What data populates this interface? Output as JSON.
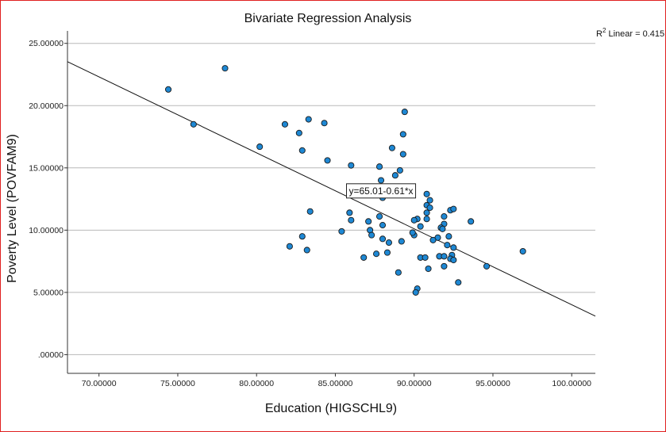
{
  "chart_data": {
    "type": "scatter",
    "title": "Bivariate Regression Analysis",
    "xlabel": "Education (HIGSCHL9)",
    "ylabel": "Poverty Level (POVFAM9)",
    "xlim": [
      68.0,
      101.5
    ],
    "ylim": [
      -1.5,
      26.0
    ],
    "xticks": [
      70,
      75,
      80,
      85,
      90,
      95,
      100
    ],
    "yticks": [
      0,
      5,
      10,
      15,
      20,
      25
    ],
    "xtick_labels": [
      "70.00000",
      "75.00000",
      "80.00000",
      "85.00000",
      "90.00000",
      "95.00000",
      "100.00000"
    ],
    "ytick_labels": [
      ".00000",
      "5.00000",
      "10.00000",
      "15.00000",
      "20.00000",
      "25.00000"
    ],
    "grid": "horizontal",
    "r2_prefix": "R",
    "r2_sup": "2",
    "r2_suffix": " Linear = 0.415",
    "equation": "y=65.01-0.61*x",
    "equation_anchor": [
      87.9,
      13.1
    ],
    "fit": {
      "intercept": 65.01,
      "slope": -0.61
    },
    "marker_color": "#1e88d4",
    "line_color": "#111111",
    "points": [
      [
        74.4,
        21.3
      ],
      [
        78.0,
        23.0
      ],
      [
        76.0,
        18.5
      ],
      [
        80.2,
        16.7
      ],
      [
        81.8,
        18.5
      ],
      [
        82.7,
        17.8
      ],
      [
        83.3,
        18.9
      ],
      [
        84.3,
        18.6
      ],
      [
        82.9,
        16.4
      ],
      [
        84.5,
        15.6
      ],
      [
        86.0,
        15.2
      ],
      [
        87.9,
        14.0
      ],
      [
        87.3,
        13.4
      ],
      [
        89.4,
        19.5
      ],
      [
        89.3,
        17.7
      ],
      [
        88.6,
        16.6
      ],
      [
        89.3,
        16.1
      ],
      [
        87.8,
        15.1
      ],
      [
        89.1,
        14.8
      ],
      [
        88.8,
        14.4
      ],
      [
        87.7,
        12.9
      ],
      [
        88.0,
        12.6
      ],
      [
        90.8,
        12.9
      ],
      [
        91.0,
        12.4
      ],
      [
        90.8,
        12.0
      ],
      [
        91.0,
        11.8
      ],
      [
        92.3,
        11.6
      ],
      [
        92.5,
        11.7
      ],
      [
        93.6,
        10.7
      ],
      [
        90.8,
        11.4
      ],
      [
        90.2,
        10.9
      ],
      [
        90.0,
        10.8
      ],
      [
        90.8,
        10.9
      ],
      [
        91.9,
        11.1
      ],
      [
        91.9,
        10.5
      ],
      [
        90.4,
        10.3
      ],
      [
        91.7,
        10.2
      ],
      [
        91.8,
        10.1
      ],
      [
        92.2,
        9.5
      ],
      [
        91.5,
        9.4
      ],
      [
        91.2,
        9.2
      ],
      [
        90.0,
        9.6
      ],
      [
        89.9,
        9.8
      ],
      [
        85.9,
        11.4
      ],
      [
        86.0,
        10.8
      ],
      [
        87.1,
        10.7
      ],
      [
        87.8,
        11.1
      ],
      [
        88.0,
        10.4
      ],
      [
        87.2,
        10.0
      ],
      [
        87.3,
        9.6
      ],
      [
        85.4,
        9.9
      ],
      [
        88.0,
        9.3
      ],
      [
        88.4,
        9.0
      ],
      [
        89.2,
        9.1
      ],
      [
        83.4,
        11.5
      ],
      [
        82.9,
        9.5
      ],
      [
        82.1,
        8.7
      ],
      [
        83.2,
        8.4
      ],
      [
        86.8,
        7.8
      ],
      [
        87.6,
        8.1
      ],
      [
        88.3,
        8.2
      ],
      [
        90.4,
        7.8
      ],
      [
        90.7,
        7.8
      ],
      [
        91.6,
        7.9
      ],
      [
        91.9,
        7.9
      ],
      [
        92.1,
        8.8
      ],
      [
        92.5,
        8.6
      ],
      [
        92.4,
        8.0
      ],
      [
        92.3,
        7.7
      ],
      [
        92.5,
        7.6
      ],
      [
        91.9,
        7.1
      ],
      [
        90.9,
        6.9
      ],
      [
        89.0,
        6.6
      ],
      [
        90.2,
        5.3
      ],
      [
        90.1,
        5.0
      ],
      [
        92.8,
        5.8
      ],
      [
        94.6,
        7.1
      ],
      [
        96.9,
        8.3
      ]
    ]
  }
}
